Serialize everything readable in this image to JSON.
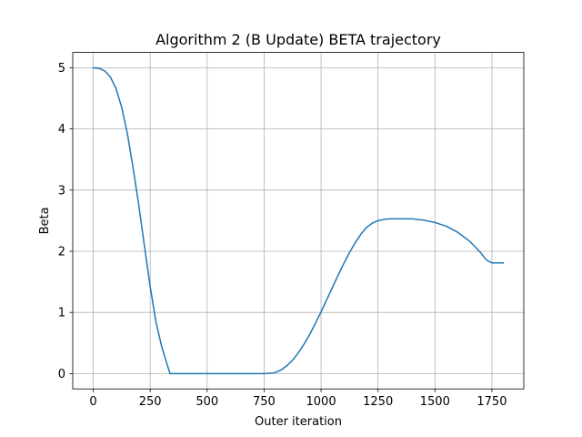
{
  "chart_data": {
    "type": "line",
    "title": "Algorithm 2 (B Update) BETA trajectory",
    "xlabel": "Outer iteration",
    "ylabel": "Beta",
    "xlim": [
      -90,
      1890
    ],
    "ylim": [
      -0.25,
      5.25
    ],
    "xticks": [
      0,
      250,
      500,
      750,
      1000,
      1250,
      1500,
      1750
    ],
    "xtick_labels": [
      "0",
      "250",
      "500",
      "750",
      "1000",
      "1250",
      "1500",
      "1750"
    ],
    "yticks": [
      0,
      1,
      2,
      3,
      4,
      5
    ],
    "ytick_labels": [
      "0",
      "1",
      "2",
      "3",
      "4",
      "5"
    ],
    "grid": true,
    "legend": "none",
    "color": "#1f77b4",
    "series": [
      {
        "x": [
          0,
          25,
          50,
          75,
          100,
          125,
          150,
          175,
          200,
          225,
          250,
          275,
          300,
          320,
          337,
          350,
          400,
          450,
          500,
          550,
          600,
          650,
          700,
          750,
          775,
          800,
          825,
          850,
          875,
          900,
          925,
          950,
          975,
          1000,
          1025,
          1050,
          1075,
          1100,
          1125,
          1150,
          1175,
          1200,
          1225,
          1250,
          1275,
          1300,
          1325,
          1350,
          1375,
          1400,
          1425,
          1450,
          1475,
          1500,
          1525,
          1550,
          1575,
          1600,
          1625,
          1650,
          1675,
          1700,
          1725,
          1750,
          1775,
          1800
        ],
        "y": [
          5.0,
          4.99,
          4.95,
          4.85,
          4.66,
          4.35,
          3.92,
          3.36,
          2.75,
          2.08,
          1.42,
          0.85,
          0.45,
          0.2,
          0.0,
          0.0,
          0.0,
          0.0,
          0.0,
          0.0,
          0.0,
          0.0,
          0.0,
          0.0,
          0.005,
          0.02,
          0.06,
          0.13,
          0.22,
          0.34,
          0.48,
          0.64,
          0.82,
          1.01,
          1.21,
          1.41,
          1.61,
          1.8,
          1.98,
          2.14,
          2.28,
          2.39,
          2.46,
          2.5,
          2.52,
          2.53,
          2.53,
          2.53,
          2.53,
          2.53,
          2.52,
          2.51,
          2.49,
          2.47,
          2.44,
          2.41,
          2.36,
          2.31,
          2.24,
          2.17,
          2.08,
          1.98,
          1.86,
          1.81,
          1.81,
          1.81
        ]
      }
    ]
  }
}
